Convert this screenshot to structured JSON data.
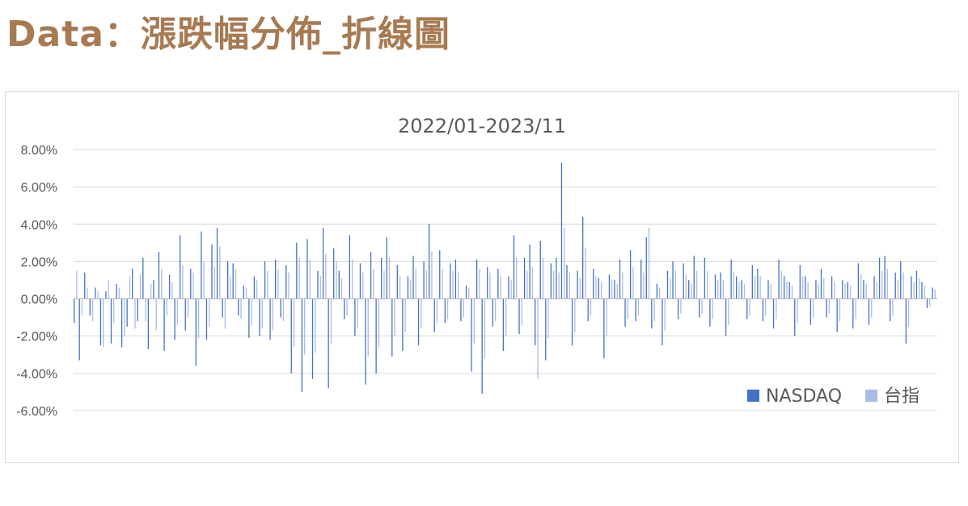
{
  "header": {
    "title": "Data：漲跌幅分佈_折線圖"
  },
  "chart_data": {
    "type": "bar",
    "title": "2022/01-2023/11",
    "xlabel": "",
    "ylabel": "",
    "ylim": [
      -0.06,
      0.08
    ],
    "yticks": [
      "8.00%",
      "6.00%",
      "4.00%",
      "2.00%",
      "0.00%",
      "-2.00%",
      "-4.00%",
      "-6.00%"
    ],
    "grid": true,
    "legend_position": "bottom-right",
    "colors": {
      "NASDAQ": "#4472c4",
      "台指": "#a9bde4"
    },
    "series": [
      {
        "name": "NASDAQ",
        "values": [
          -0.013,
          -0.033,
          0.014,
          -0.009,
          0.006,
          -0.025,
          0.004,
          -0.024,
          0.008,
          -0.026,
          -0.015,
          0.016,
          -0.012,
          0.022,
          -0.027,
          0.01,
          0.025,
          -0.028,
          0.013,
          -0.022,
          0.034,
          -0.017,
          0.016,
          -0.036,
          0.036,
          -0.022,
          0.029,
          0.038,
          -0.01,
          0.02,
          0.019,
          -0.009,
          0.007,
          -0.021,
          0.012,
          -0.02,
          0.02,
          -0.022,
          0.021,
          -0.01,
          0.018,
          -0.04,
          0.03,
          -0.05,
          0.032,
          -0.043,
          0.015,
          0.038,
          -0.048,
          0.027,
          0.015,
          -0.011,
          0.034,
          -0.02,
          0.019,
          -0.046,
          0.025,
          -0.04,
          0.022,
          0.033,
          -0.031,
          0.018,
          -0.028,
          0.012,
          0.023,
          -0.025,
          0.02,
          0.04,
          -0.018,
          0.026,
          -0.013,
          0.019,
          0.021,
          -0.012,
          0.007,
          -0.039,
          0.021,
          -0.051,
          0.017,
          -0.015,
          0.016,
          -0.028,
          0.012,
          0.034,
          -0.019,
          0.022,
          0.029,
          -0.025,
          0.031,
          -0.033,
          0.019,
          0.022,
          0.073,
          0.018,
          -0.025,
          0.015,
          0.044,
          -0.012,
          0.016,
          0.011,
          -0.032,
          0.013,
          0.01,
          0.021,
          -0.015,
          0.026,
          -0.012,
          0.021,
          0.033,
          -0.016,
          0.008,
          -0.025,
          0.015,
          0.02,
          -0.011,
          0.019,
          0.01,
          0.023,
          -0.01,
          0.022,
          -0.015,
          0.013,
          0.014,
          -0.02,
          0.021,
          0.012,
          0.01,
          -0.011,
          0.018,
          0.016,
          -0.012,
          0.01,
          -0.016,
          0.021,
          0.012,
          0.009,
          -0.02,
          0.018,
          0.012,
          -0.014,
          0.01,
          0.016,
          -0.01,
          0.012,
          -0.018,
          0.01,
          0.009,
          -0.016,
          0.019,
          0.01,
          -0.014,
          0.012,
          0.022,
          0.023,
          -0.012,
          0.014,
          0.02,
          -0.024,
          0.012,
          0.015,
          0.009,
          -0.005,
          0.006
        ]
      },
      {
        "name": "台指",
        "values": [
          0.015,
          -0.009,
          0.006,
          -0.012,
          0.004,
          -0.026,
          0.01,
          -0.013,
          0.006,
          -0.02,
          0.012,
          -0.016,
          0.013,
          -0.012,
          0.008,
          -0.017,
          0.016,
          -0.009,
          0.009,
          -0.014,
          0.018,
          -0.01,
          0.014,
          -0.021,
          0.02,
          -0.015,
          0.017,
          0.028,
          -0.016,
          0.012,
          0.016,
          -0.011,
          0.006,
          -0.014,
          0.01,
          -0.016,
          0.015,
          -0.017,
          0.016,
          -0.012,
          0.014,
          -0.026,
          0.022,
          -0.03,
          0.021,
          -0.029,
          0.012,
          0.024,
          -0.024,
          0.02,
          0.011,
          -0.009,
          0.021,
          -0.016,
          0.014,
          -0.031,
          0.016,
          -0.026,
          0.015,
          0.022,
          -0.02,
          0.012,
          -0.018,
          0.01,
          0.016,
          -0.016,
          0.015,
          0.025,
          -0.013,
          0.016,
          -0.011,
          0.015,
          0.014,
          -0.01,
          0.006,
          -0.024,
          0.016,
          -0.032,
          0.014,
          -0.012,
          0.012,
          -0.02,
          0.01,
          0.022,
          -0.014,
          0.015,
          0.017,
          -0.043,
          0.022,
          -0.021,
          0.015,
          0.014,
          0.038,
          0.014,
          -0.018,
          0.011,
          0.027,
          -0.009,
          0.012,
          0.009,
          -0.02,
          0.01,
          0.008,
          0.014,
          -0.011,
          0.017,
          -0.009,
          0.014,
          0.038,
          -0.012,
          0.006,
          -0.017,
          0.011,
          0.015,
          -0.008,
          0.013,
          0.008,
          0.015,
          -0.008,
          0.015,
          -0.011,
          0.01,
          0.01,
          -0.014,
          0.014,
          0.009,
          0.008,
          -0.009,
          0.012,
          0.012,
          -0.009,
          0.008,
          -0.011,
          0.015,
          0.009,
          0.007,
          -0.013,
          0.012,
          0.009,
          -0.01,
          0.008,
          0.011,
          -0.008,
          0.009,
          -0.012,
          0.008,
          0.007,
          -0.011,
          0.013,
          0.008,
          -0.01,
          0.009,
          0.015,
          0.016,
          -0.009,
          0.01,
          0.014,
          -0.015,
          0.009,
          0.011,
          0.007,
          -0.004,
          0.005
        ]
      }
    ]
  }
}
